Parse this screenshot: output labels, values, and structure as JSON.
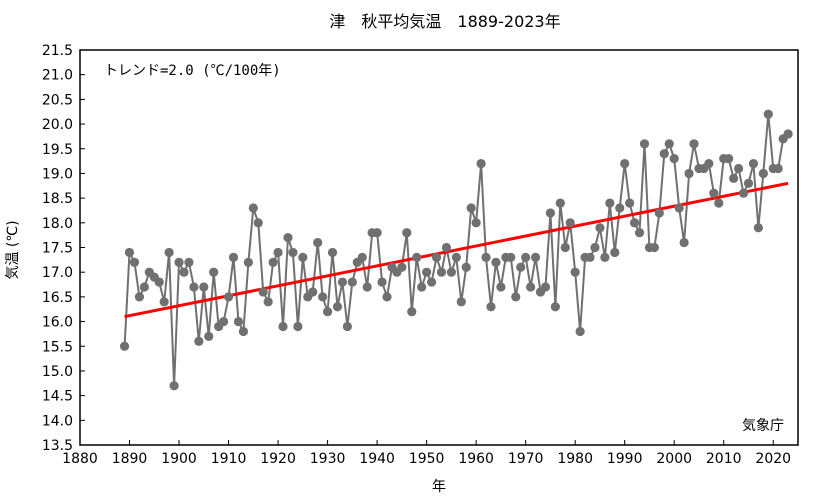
{
  "chart_data": {
    "type": "line",
    "title": "津　秋平均気温　1889-2023年",
    "xlabel": "年",
    "ylabel": "気温 (℃)",
    "xlim": [
      1880,
      2025
    ],
    "ylim": [
      13.5,
      21.5
    ],
    "xticks": [
      1880,
      1890,
      1900,
      1910,
      1920,
      1930,
      1940,
      1950,
      1960,
      1970,
      1980,
      1990,
      2000,
      2010,
      2020
    ],
    "yticks": [
      "13.5",
      "14.0",
      "14.5",
      "15.0",
      "15.5",
      "16.0",
      "16.5",
      "17.0",
      "17.5",
      "18.0",
      "18.5",
      "19.0",
      "19.5",
      "20.0",
      "20.5",
      "21.0",
      "21.5"
    ],
    "annotation": "トレンド=2.0 (℃/100年)",
    "credit": "気象庁",
    "grid": false,
    "colors": {
      "series": "#707070",
      "trend": "#ff0000"
    },
    "trend": {
      "x": [
        1889,
        2023
      ],
      "y": [
        16.1,
        18.8
      ]
    },
    "series": [
      {
        "x": [
          1889,
          1890,
          1891,
          1892,
          1893,
          1894,
          1895,
          1896,
          1897,
          1898,
          1899,
          1900,
          1901,
          1902,
          1903,
          1904,
          1905,
          1906,
          1907,
          1908,
          1909,
          1910,
          1911,
          1912,
          1913,
          1914,
          1915,
          1916,
          1917,
          1918,
          1919,
          1920,
          1921,
          1922,
          1923,
          1924,
          1925,
          1926,
          1927,
          1928,
          1929,
          1930,
          1931,
          1932,
          1933,
          1934,
          1935,
          1936,
          1937,
          1938,
          1939,
          1940,
          1941,
          1942,
          1943,
          1944,
          1945,
          1946,
          1947,
          1948,
          1949,
          1950,
          1951,
          1952,
          1953,
          1954,
          1955,
          1956,
          1957,
          1958,
          1959,
          1960,
          1961,
          1962,
          1963,
          1964,
          1965,
          1966,
          1967,
          1968,
          1969,
          1970,
          1971,
          1972,
          1973,
          1974,
          1975,
          1976,
          1977,
          1978,
          1979,
          1980,
          1981,
          1982,
          1983,
          1984,
          1985,
          1986,
          1987,
          1988,
          1989,
          1990,
          1991,
          1992,
          1993,
          1994,
          1995,
          1996,
          1997,
          1998,
          1999,
          2000,
          2001,
          2002,
          2003,
          2004,
          2005,
          2006,
          2007,
          2008,
          2009,
          2010,
          2011,
          2012,
          2013,
          2014,
          2015,
          2016,
          2017,
          2018,
          2019,
          2020,
          2021,
          2022,
          2023
        ],
        "values": [
          15.5,
          17.4,
          17.2,
          16.5,
          16.7,
          17.0,
          16.9,
          16.8,
          16.4,
          17.4,
          14.7,
          17.2,
          17.0,
          17.2,
          16.7,
          15.6,
          16.7,
          15.7,
          17.0,
          15.9,
          16.0,
          16.5,
          17.3,
          16.0,
          15.8,
          17.2,
          18.3,
          18.0,
          16.6,
          16.4,
          17.2,
          17.4,
          15.9,
          17.7,
          17.4,
          15.9,
          17.3,
          16.5,
          16.6,
          17.6,
          16.5,
          16.2,
          17.4,
          16.3,
          16.8,
          15.9,
          16.8,
          17.2,
          17.3,
          16.7,
          17.8,
          17.8,
          16.8,
          16.5,
          17.1,
          17.0,
          17.1,
          17.8,
          16.2,
          17.3,
          16.7,
          17.0,
          16.8,
          17.3,
          17.0,
          17.5,
          17.0,
          17.3,
          16.4,
          17.1,
          18.3,
          18.0,
          19.2,
          17.3,
          16.3,
          17.2,
          16.7,
          17.3,
          17.3,
          16.5,
          17.1,
          17.3,
          16.7,
          17.3,
          16.6,
          16.7,
          18.2,
          16.3,
          18.4,
          17.5,
          18.0,
          17.0,
          15.8,
          17.3,
          17.3,
          17.5,
          17.9,
          17.3,
          18.4,
          17.4,
          18.3,
          19.2,
          18.4,
          18.0,
          17.8,
          19.6,
          17.5,
          17.5,
          18.2,
          19.4,
          19.6,
          19.3,
          18.3,
          17.6,
          19.0,
          19.6,
          19.1,
          19.1,
          19.2,
          18.6,
          18.4,
          19.3,
          19.3,
          18.9,
          19.1,
          18.6,
          18.8,
          19.2,
          17.9,
          19.0,
          20.2,
          19.1,
          19.1,
          19.7,
          19.8
        ]
      }
    ]
  }
}
